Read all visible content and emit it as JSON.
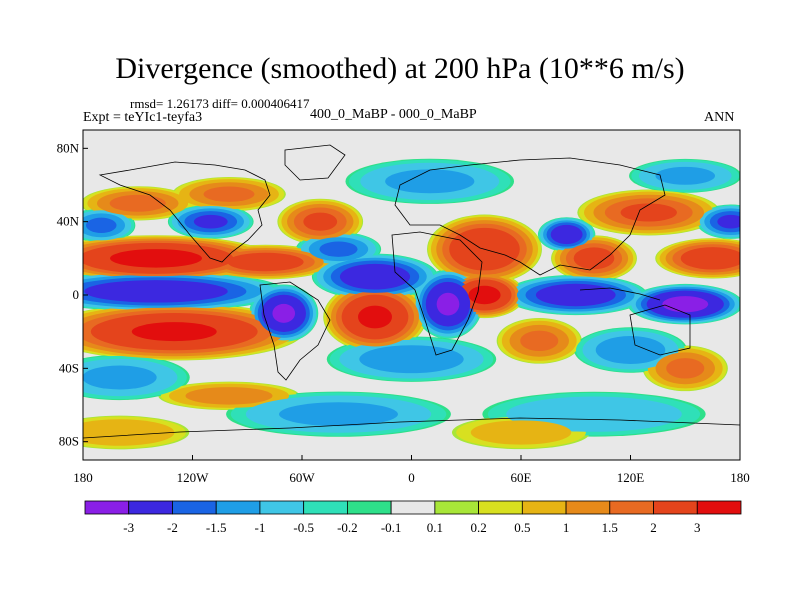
{
  "title": "Divergence (smoothed) at 200 hPa (10**6 m/s)",
  "stats": "rmsd= 1.26173 diff= 0.000406417",
  "experiment": "Expt = teYIc1-teyfa3",
  "center_label": "400_0_MaBP - 000_0_MaBP",
  "season": "ANN",
  "chart_data": {
    "type": "heatmap",
    "title": "Divergence (smoothed) at 200 hPa (10**6 m/s)",
    "x_axis": {
      "range": [
        -180,
        180
      ],
      "ticks": [
        -180,
        -120,
        -60,
        0,
        60,
        120,
        180
      ],
      "tick_labels": [
        "180",
        "120W",
        "60W",
        "0",
        "60E",
        "120E",
        "180"
      ]
    },
    "y_axis": {
      "range": [
        -90,
        90
      ],
      "ticks": [
        80,
        40,
        0,
        -40,
        -80
      ],
      "tick_labels": [
        "80N",
        "40N",
        "0",
        "40S",
        "80S"
      ]
    },
    "colorbar": {
      "colors": [
        "#8a1fe6",
        "#3c28e0",
        "#1a64e4",
        "#1f9ee6",
        "#3fc6e6",
        "#2fe0b8",
        "#2ee08a",
        "#e8e8e8",
        "#a8e638",
        "#d8e020",
        "#e6b414",
        "#e68a1a",
        "#e86a22",
        "#e4441c",
        "#e20e0e"
      ],
      "labels": [
        "-3",
        "-2",
        "-1.5",
        "-1",
        "-0.5",
        "-0.2",
        "-0.1",
        "0.1",
        "0.2",
        "0.5",
        "1",
        "1.5",
        "2",
        "3"
      ]
    },
    "features": [
      {
        "lon": -140,
        "lat": 20,
        "value": 3.2,
        "rx": 40,
        "ry": 8
      },
      {
        "lon": -130,
        "lat": -20,
        "value": 3.0,
        "rx": 45,
        "ry": 10
      },
      {
        "lon": -80,
        "lat": 18,
        "value": 2.4,
        "rx": 25,
        "ry": 6
      },
      {
        "lon": -20,
        "lat": -12,
        "value": 3.0,
        "rx": 18,
        "ry": 12
      },
      {
        "lon": 40,
        "lat": 25,
        "value": 2.8,
        "rx": 20,
        "ry": 12
      },
      {
        "lon": 40,
        "lat": 0,
        "value": 3.2,
        "rx": 14,
        "ry": 8
      },
      {
        "lon": 100,
        "lat": 20,
        "value": 2.2,
        "rx": 15,
        "ry": 8
      },
      {
        "lon": 165,
        "lat": 20,
        "value": 2.5,
        "rx": 20,
        "ry": 7
      },
      {
        "lon": 130,
        "lat": 45,
        "value": 2.0,
        "rx": 25,
        "ry": 8
      },
      {
        "lon": -50,
        "lat": 40,
        "value": 2.0,
        "rx": 15,
        "ry": 8
      },
      {
        "lon": -150,
        "lat": 50,
        "value": 1.6,
        "rx": 20,
        "ry": 6
      },
      {
        "lon": -100,
        "lat": 55,
        "value": 1.5,
        "rx": 20,
        "ry": 6
      },
      {
        "lon": 150,
        "lat": -40,
        "value": 1.5,
        "rx": 15,
        "ry": 8
      },
      {
        "lon": 70,
        "lat": -25,
        "value": 1.5,
        "rx": 15,
        "ry": 8
      },
      {
        "lon": -100,
        "lat": -55,
        "value": 1.2,
        "rx": 25,
        "ry": 5
      },
      {
        "lon": -140,
        "lat": 2,
        "value": -2.5,
        "rx": 45,
        "ry": 7
      },
      {
        "lon": -70,
        "lat": -10,
        "value": -3.0,
        "rx": 12,
        "ry": 10
      },
      {
        "lon": -20,
        "lat": 10,
        "value": -2.5,
        "rx": 22,
        "ry": 8
      },
      {
        "lon": 20,
        "lat": -5,
        "value": -3.0,
        "rx": 12,
        "ry": 12
      },
      {
        "lon": 90,
        "lat": 0,
        "value": -2.5,
        "rx": 25,
        "ry": 7
      },
      {
        "lon": 150,
        "lat": -5,
        "value": -3.2,
        "rx": 20,
        "ry": 7
      },
      {
        "lon": 85,
        "lat": 33,
        "value": -2.5,
        "rx": 10,
        "ry": 6
      },
      {
        "lon": -110,
        "lat": 40,
        "value": -2.0,
        "rx": 15,
        "ry": 6
      },
      {
        "lon": 175,
        "lat": 40,
        "value": -2.0,
        "rx": 12,
        "ry": 6
      },
      {
        "lon": -170,
        "lat": 38,
        "value": -1.5,
        "rx": 12,
        "ry": 6
      },
      {
        "lon": -40,
        "lat": 25,
        "value": -1.5,
        "rx": 15,
        "ry": 6
      },
      {
        "lon": 0,
        "lat": -35,
        "value": -1.2,
        "rx": 30,
        "ry": 8
      },
      {
        "lon": 120,
        "lat": -30,
        "value": -1.2,
        "rx": 20,
        "ry": 8
      },
      {
        "lon": -160,
        "lat": -45,
        "value": -1.0,
        "rx": 25,
        "ry": 8
      },
      {
        "lon": 10,
        "lat": 62,
        "value": -1.0,
        "rx": 30,
        "ry": 8
      },
      {
        "lon": -40,
        "lat": -65,
        "value": -1.0,
        "rx": 40,
        "ry": 8
      },
      {
        "lon": 100,
        "lat": -65,
        "value": -0.8,
        "rx": 40,
        "ry": 8
      },
      {
        "lon": -160,
        "lat": -75,
        "value": 0.8,
        "rx": 25,
        "ry": 6
      },
      {
        "lon": 60,
        "lat": -75,
        "value": 0.6,
        "rx": 25,
        "ry": 6
      },
      {
        "lon": 150,
        "lat": 65,
        "value": -1.0,
        "rx": 20,
        "ry": 6
      }
    ]
  }
}
